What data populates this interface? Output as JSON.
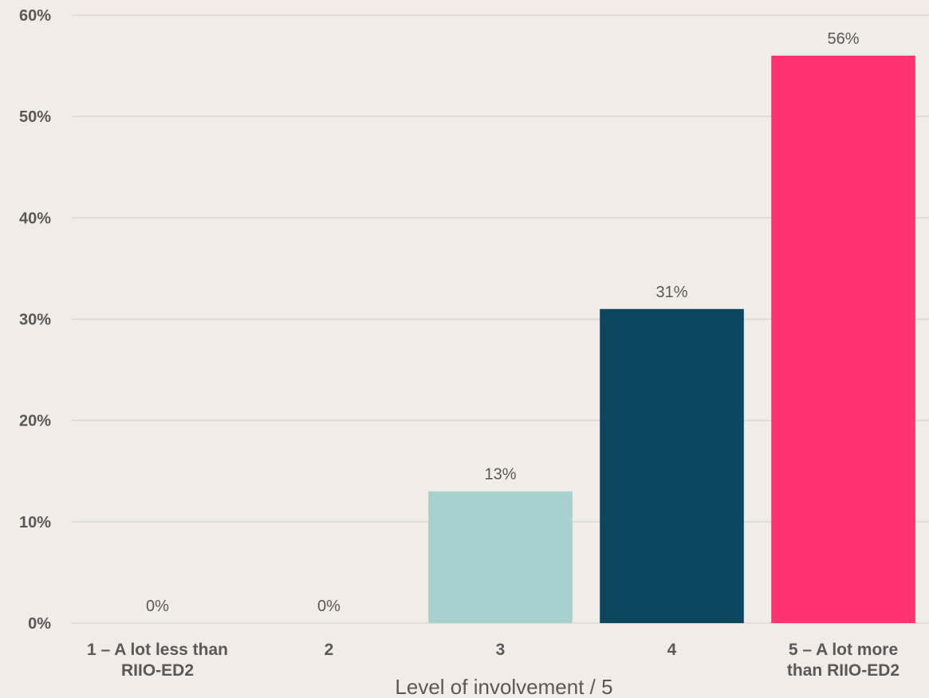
{
  "chart_data": {
    "type": "bar",
    "title": "",
    "xlabel": "Level of involvement / 5",
    "ylabel": "",
    "categories": [
      [
        "1 – A lot less than",
        "RIIO-ED2"
      ],
      [
        "2"
      ],
      [
        "3"
      ],
      [
        "4"
      ],
      [
        "5 – A lot more",
        "than RIIO-ED2"
      ]
    ],
    "values": [
      0,
      0,
      13,
      31,
      56
    ],
    "value_labels": [
      "0%",
      "0%",
      "13%",
      "31%",
      "56%"
    ],
    "bar_colors": [
      "#a6d1cc",
      "#a6d1cc",
      "#a6d1cc",
      "#0c475f",
      "#ff3370"
    ],
    "ylim": [
      0,
      60
    ],
    "yticks": [
      0,
      10,
      20,
      30,
      40,
      50,
      60
    ],
    "ytick_labels": [
      "0%",
      "10%",
      "20%",
      "30%",
      "40%",
      "50%",
      "60%"
    ],
    "grid": true,
    "legend": "none"
  }
}
